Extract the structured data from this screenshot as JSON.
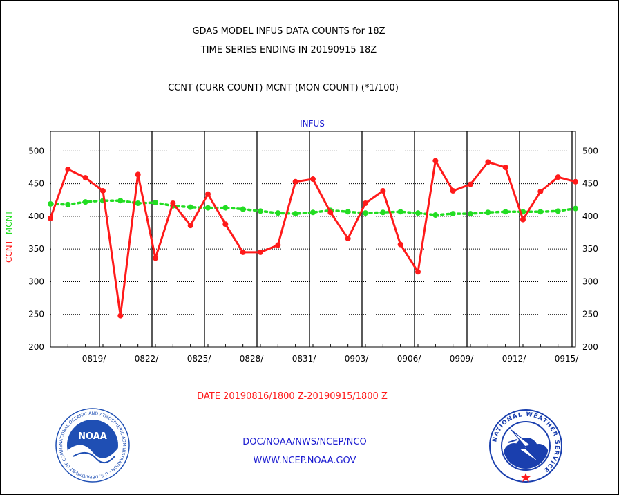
{
  "header": {
    "title_line1": "GDAS MODEL INFUS DATA COUNTS for 18Z",
    "title_line2": "TIME SERIES ENDING IN 20190915 18Z",
    "subtitle": "CCNT (CURR COUNT) MCNT (MON COUNT) (*1/100)"
  },
  "footer": {
    "date_range": "DATE 20190816/1800 Z-20190915/1800 Z",
    "credit_line1": "DOC/NOAA/NWS/NCEP/NCO",
    "credit_line2": "WWW.NCEP.NOAA.GOV"
  },
  "logos": {
    "left": {
      "icon": "noaa-logo-icon",
      "text": "NOAA",
      "ring_text": "NATIONAL OCEANIC AND ATMOSPHERIC ADMINISTRATION · U.S. DEPARTMENT OF COMMERCE"
    },
    "right": {
      "icon": "nws-logo-icon",
      "ring_text": "NATIONAL WEATHER SERVICE"
    }
  },
  "colors": {
    "ccnt": "#ff1a1a",
    "mcnt": "#22dd22",
    "text_blue": "#1a1ad0",
    "noaa_blue": "#1f4fb4",
    "nws_blue": "#1a3fae"
  },
  "chart_data": {
    "type": "line",
    "panel_title": "INFUS",
    "ylabel_parts": [
      "CCNT",
      "MCNT"
    ],
    "ylim": [
      200,
      530
    ],
    "yticks": [
      200,
      250,
      300,
      350,
      400,
      450,
      500
    ],
    "xlim": [
      0,
      30
    ],
    "x_tick_labels": [
      "0819/",
      "0822/",
      "0825/",
      "0828/",
      "0831/",
      "0903/",
      "0906/",
      "0909/",
      "0912/",
      "0915/"
    ],
    "x_tick_positions": [
      3,
      6,
      9,
      12,
      15,
      18,
      21,
      24,
      27,
      30
    ],
    "grid": true,
    "legend": "none",
    "series": [
      {
        "name": "CCNT",
        "style": "solid-with-dots",
        "x": [
          0,
          1,
          2,
          3,
          4,
          5,
          6,
          7,
          8,
          9,
          10,
          11,
          12,
          13,
          14,
          15,
          16,
          17,
          18,
          19,
          20,
          21,
          22,
          23,
          24,
          25,
          26,
          27,
          28,
          29,
          30
        ],
        "values": [
          397,
          472,
          459,
          439,
          248,
          464,
          336,
          420,
          386,
          434,
          388,
          345,
          345,
          356,
          453,
          457,
          406,
          366,
          420,
          439,
          357,
          315,
          485,
          439,
          449,
          483,
          475,
          395,
          438,
          460,
          453
        ]
      },
      {
        "name": "MCNT",
        "style": "dotted-with-dots",
        "x": [
          0,
          1,
          2,
          3,
          4,
          5,
          6,
          7,
          8,
          9,
          10,
          11,
          12,
          13,
          14,
          15,
          16,
          17,
          18,
          19,
          20,
          21,
          22,
          23,
          24,
          25,
          26,
          27,
          28,
          29,
          30
        ],
        "values": [
          419,
          418,
          422,
          424,
          424,
          420,
          421,
          416,
          414,
          413,
          413,
          411,
          408,
          405,
          404,
          406,
          409,
          407,
          405,
          406,
          407,
          405,
          402,
          404,
          404,
          406,
          407,
          407,
          407,
          408,
          412
        ]
      }
    ]
  }
}
